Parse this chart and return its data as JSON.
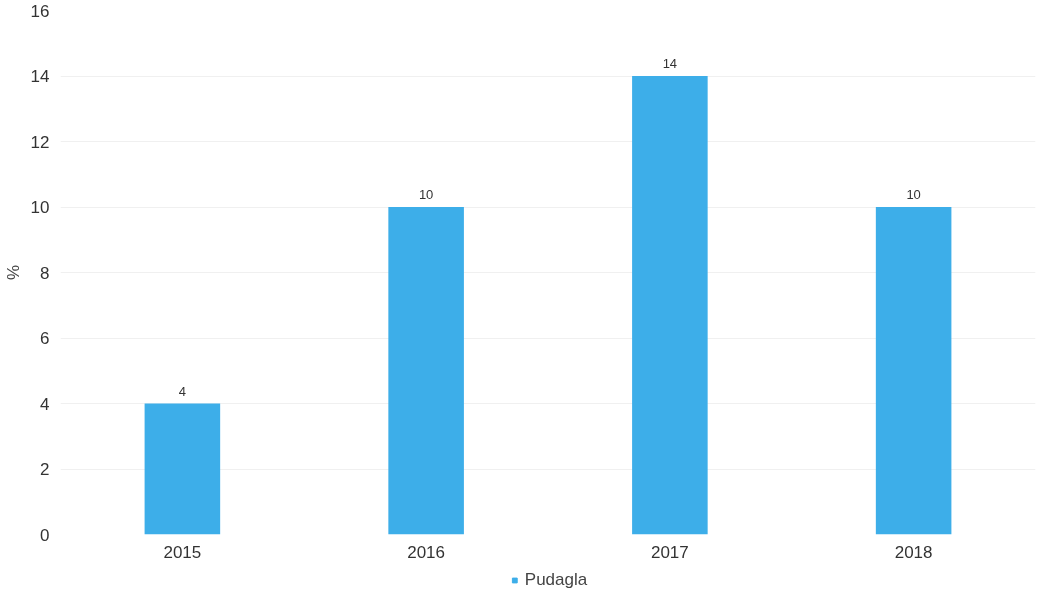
{
  "chart_data": {
    "type": "bar",
    "ylabel": "%",
    "categories": [
      "2015",
      "2016",
      "2017",
      "2018"
    ],
    "series": [
      {
        "name": "Pudagla",
        "color": "#3daee9",
        "values": [
          4,
          10,
          14,
          10
        ]
      }
    ],
    "ylim": [
      0,
      16
    ],
    "yticks": [
      0,
      2,
      4,
      6,
      8,
      10,
      12,
      14,
      16
    ],
    "grid": "y",
    "legend": "bottom",
    "data_labels": true
  }
}
